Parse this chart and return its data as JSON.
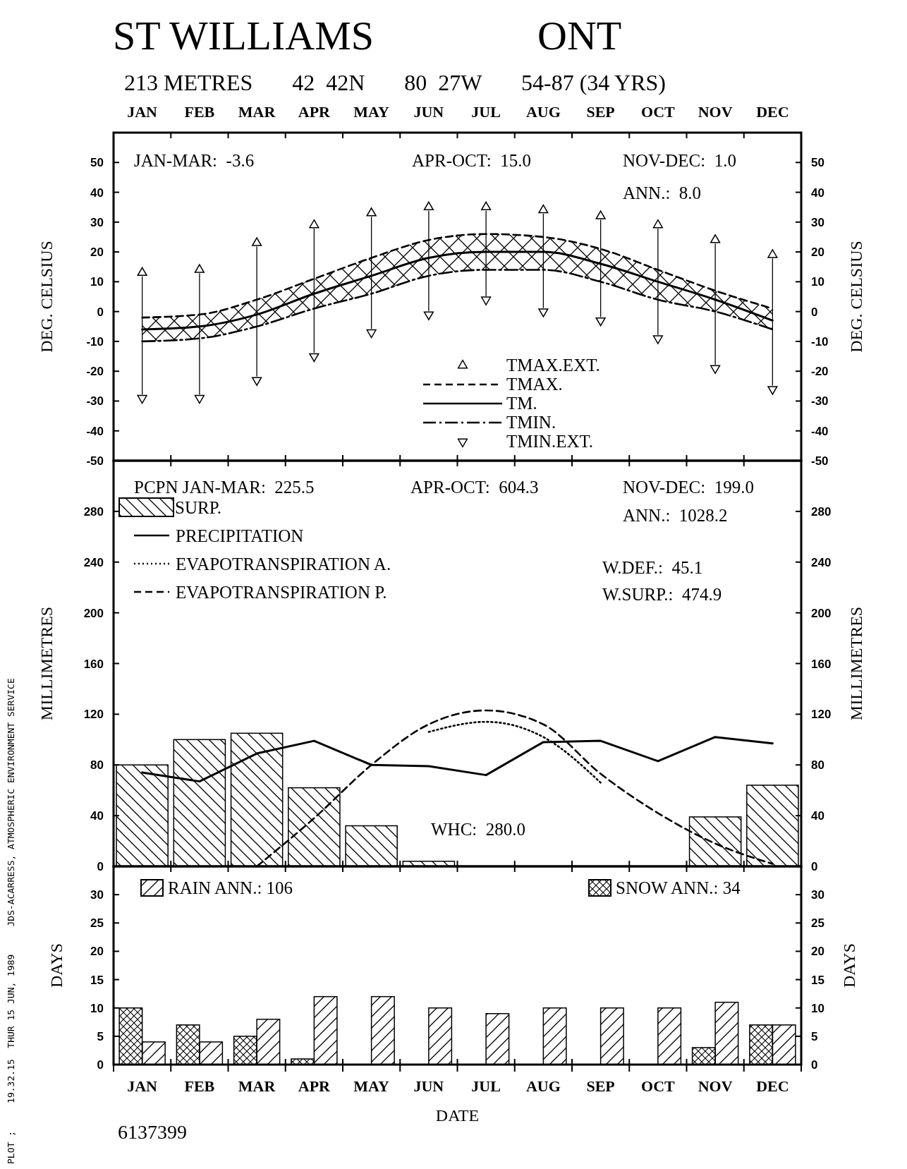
{
  "chart_data": [
    {
      "type": "line",
      "title": "ST WILLIAMS                ONT",
      "subtitle": "213 METRES       42  42N       80  27W       54-87 (34 YRS)",
      "categories": [
        "JAN",
        "FEB",
        "MAR",
        "APR",
        "MAY",
        "JUN",
        "JUL",
        "AUG",
        "SEP",
        "OCT",
        "NOV",
        "DEC"
      ],
      "series": [
        {
          "name": "TMAX.EXT.",
          "type": "scatter",
          "marker": "triangle",
          "color": "#000000",
          "values": [
            13,
            14,
            23,
            29,
            33,
            35,
            35,
            34,
            32,
            29,
            24,
            19
          ]
        },
        {
          "name": "TMAX.",
          "type": "line",
          "line_style": "dashed",
          "color": "#000000",
          "values": [
            -2,
            -1,
            4,
            11,
            18,
            24,
            26,
            25,
            21,
            14,
            7,
            1
          ]
        },
        {
          "name": "TM.",
          "type": "line",
          "line_style": "solid",
          "color": "#000000",
          "values": [
            -6,
            -5,
            -1,
            6,
            12,
            18,
            20,
            20,
            16,
            10,
            4,
            -3
          ],
          "lower": [
            -10,
            -9,
            -5,
            1,
            6,
            12,
            14,
            14,
            10,
            4,
            0,
            -6
          ],
          "upper": [
            -2,
            -1,
            4,
            11,
            18,
            24,
            26,
            25,
            21,
            14,
            7,
            1
          ]
        },
        {
          "name": "TMIN.",
          "type": "line",
          "line_style": "dashdot",
          "color": "#000000",
          "values": [
            -10,
            -9,
            -5,
            1,
            6,
            12,
            14,
            14,
            10,
            4,
            0,
            -6
          ]
        },
        {
          "name": "TMIN.EXT.",
          "type": "scatter",
          "marker": "triangle-down",
          "color": "#000000",
          "values": [
            -29,
            -29,
            -23,
            -15,
            -7,
            -1,
            4,
            0,
            -3,
            -9,
            -19,
            -26
          ]
        }
      ],
      "ylim": [
        -50,
        60
      ],
      "yticks": [
        -50,
        -40,
        -30,
        -20,
        -10,
        0,
        10,
        20,
        30,
        40,
        50
      ],
      "y2lim": [
        -50,
        60
      ],
      "y2ticks": [
        -50,
        -40,
        -30,
        -20,
        -10,
        0,
        10,
        20,
        30,
        40,
        50
      ],
      "ylabel": "DEG. CELSIUS",
      "y2label": "DEG. CELSIUS",
      "legend": "bottom",
      "annotations": [
        "JAN-MAR:  -3.6",
        "APR-OCT:  15.0",
        "NOV-DEC:  1.0",
        "ANN.:  8.0"
      ]
    },
    {
      "type": "bar",
      "categories": [
        null,
        null,
        null,
        null,
        null,
        null,
        null,
        null,
        null,
        null,
        null,
        null
      ],
      "series": [
        {
          "name": "SURP.",
          "type": "bar",
          "color": "#000000",
          "values": [
            80,
            100,
            105,
            62,
            32,
            4,
            0,
            0,
            0,
            0,
            39,
            64
          ]
        },
        {
          "name": "PRECIPITATION",
          "type": "line",
          "line_style": "solid",
          "color": "#000000",
          "values": [
            74,
            67,
            89,
            99,
            80,
            79,
            72,
            98,
            99,
            83,
            102,
            97
          ]
        },
        {
          "name": "EVAPOTRANSPIRATION A.",
          "type": "line",
          "line_style": "dotted",
          "color": "#000000",
          "values": [
            null,
            null,
            null,
            null,
            null,
            106,
            114,
            102,
            66,
            null,
            null,
            null
          ]
        },
        {
          "name": "EVAPOTRANSPIRATION P.",
          "type": "line",
          "line_style": "dashed",
          "color": "#000000",
          "values": [
            null,
            null,
            0,
            38,
            80,
            112,
            123,
            112,
            73,
            42,
            18,
            2
          ]
        }
      ],
      "ylim": [
        0,
        320
      ],
      "yticks": [
        0,
        40,
        80,
        120,
        160,
        200,
        240,
        280
      ],
      "y2lim": [
        0,
        320
      ],
      "y2ticks": [
        0,
        40,
        80,
        120,
        160,
        200,
        240,
        280
      ],
      "ylabel": "MILLIMETRES",
      "y2label": "MILLIMETRES",
      "legend": "top left",
      "tick_labels": "y",
      "annotations": [
        "PCPN JAN-MAR:  225.5",
        "APR-OCT:  604.3",
        "NOV-DEC:  199.0",
        "ANN.:  1028.2",
        "W.DEF.:  45.1",
        "W.SURP.:  474.9",
        "WHC:  280.0"
      ]
    },
    {
      "type": "bar",
      "categories": [
        "JAN",
        "FEB",
        "MAR",
        "APR",
        "MAY",
        "JUN",
        "JUL",
        "AUG",
        "SEP",
        "OCT",
        "NOV",
        "DEC"
      ],
      "series": [
        {
          "name": "SNOW ANN.: 34",
          "color": "#000000",
          "values": [
            10,
            7,
            5,
            1,
            0,
            0,
            0,
            0,
            0,
            0,
            3,
            7
          ]
        },
        {
          "name": "RAIN ANN.: 106",
          "color": "#000000",
          "values": [
            4,
            4,
            8,
            12,
            12,
            10,
            9,
            10,
            10,
            10,
            11,
            7
          ]
        }
      ],
      "ylim": [
        0,
        35
      ],
      "yticks": [
        0,
        5,
        10,
        15,
        20,
        25,
        30
      ],
      "y2lim": [
        0,
        35
      ],
      "y2ticks": [
        0,
        5,
        10,
        15,
        20,
        25,
        30
      ],
      "ylabel": "DAYS",
      "y2label": "DAYS",
      "xlabel": "DATE",
      "legend": "top",
      "annotations": [
        "6137399",
        "PLOT ;     19.32.15  THUR 15 JUN, 1989     JDS-ACARRESS, ATMOSPHERIC ENVIRONMENT SERVICE"
      ]
    }
  ]
}
